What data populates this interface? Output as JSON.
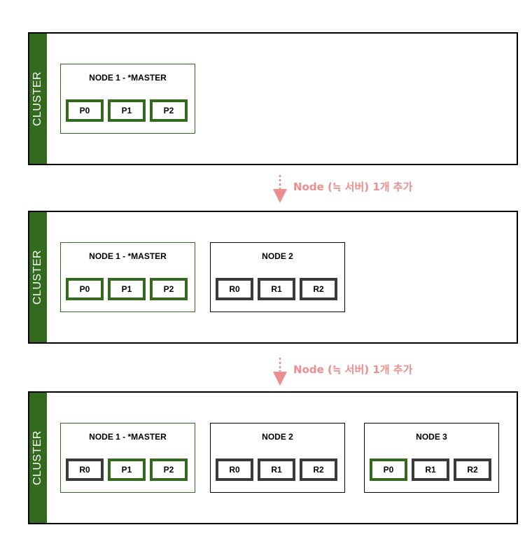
{
  "colors": {
    "primary_green": "#336a1e",
    "replica_gray": "#3a3a3a",
    "arrow_pink": "#ec8e8e"
  },
  "transitions": [
    {
      "label": "Node (≒ 서버) 1개 추가"
    },
    {
      "label": "Node (≒ 서버) 1개 추가"
    }
  ],
  "clusters": [
    {
      "label": "CLUSTER",
      "nodes": [
        {
          "title": "NODE 1 - *MASTER",
          "shards": [
            "P0",
            "P1",
            "P2"
          ]
        }
      ]
    },
    {
      "label": "CLUSTER",
      "nodes": [
        {
          "title": "NODE 1 - *MASTER",
          "shards": [
            "P0",
            "P1",
            "P2"
          ]
        },
        {
          "title": "NODE 2",
          "shards": [
            "R0",
            "R1",
            "R2"
          ]
        }
      ]
    },
    {
      "label": "CLUSTER",
      "nodes": [
        {
          "title": "NODE 1 - *MASTER",
          "shards": [
            "R0",
            "P1",
            "P2"
          ]
        },
        {
          "title": "NODE 2",
          "shards": [
            "R0",
            "R1",
            "R2"
          ]
        },
        {
          "title": "NODE 3",
          "shards": [
            "P0",
            "R1",
            "R2"
          ]
        }
      ]
    }
  ]
}
